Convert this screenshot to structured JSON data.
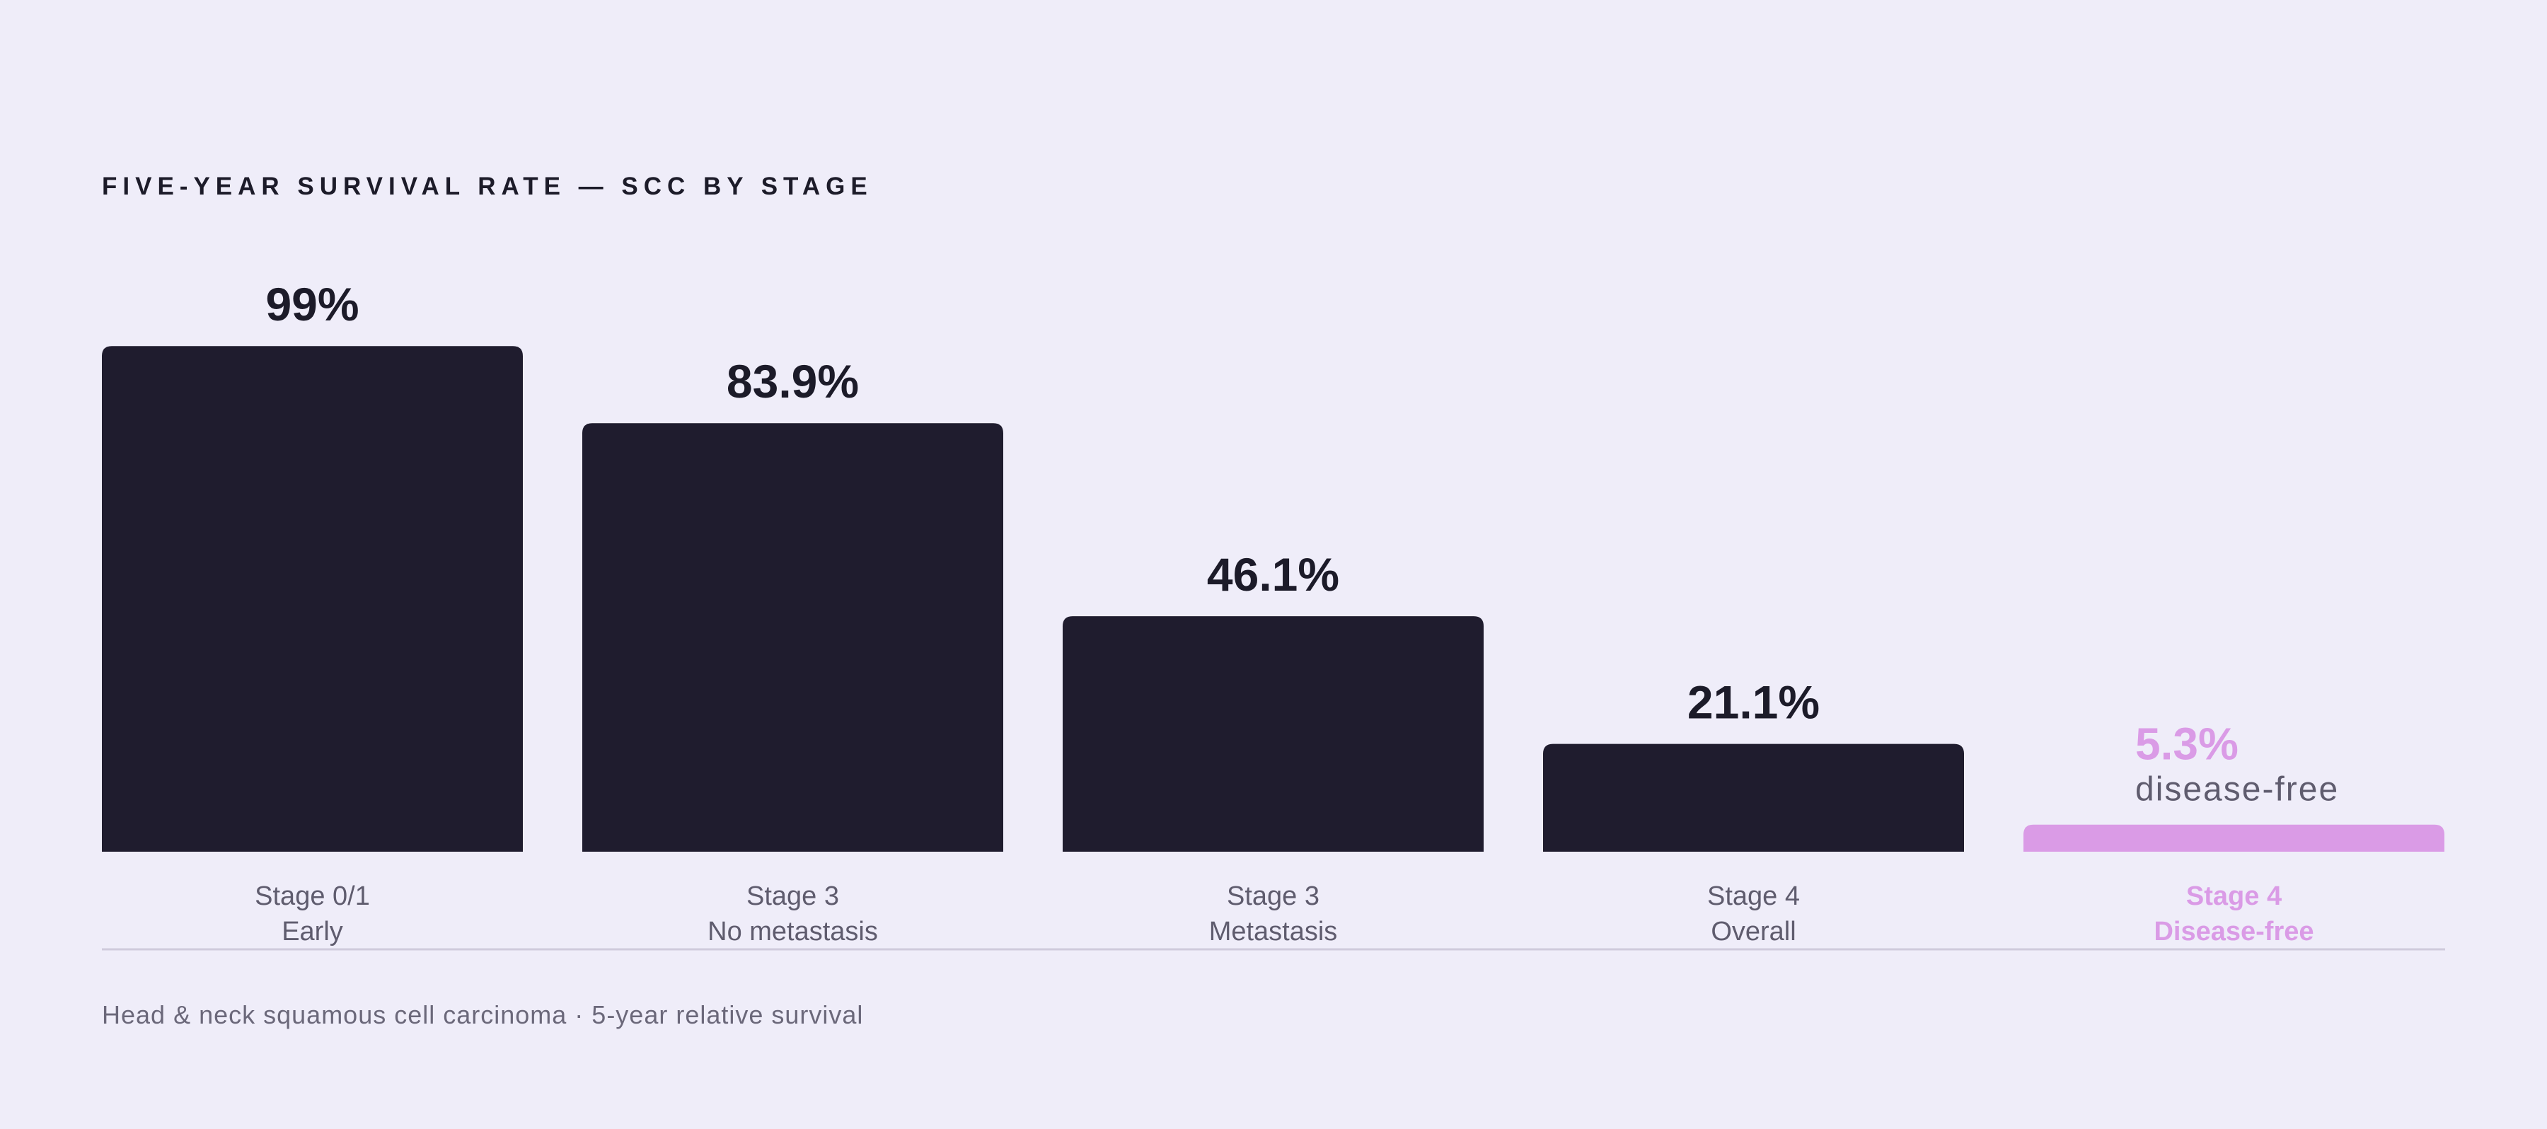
{
  "colors": {
    "background": "#efedf9",
    "bar": "#1f1c2e",
    "highlight": "#da9be6",
    "value_text": "#1c1b29",
    "category_text": "#5f5c6e",
    "baseline": "#cfcbdc"
  },
  "chart_data": {
    "type": "bar",
    "title": "FIVE-YEAR SURVIVAL RATE — SCC BY STAGE",
    "categories": [
      [
        "Stage 0/1",
        "Early"
      ],
      [
        "Stage 3",
        "No metastasis"
      ],
      [
        "Stage 3",
        "Metastasis"
      ],
      [
        "Stage 4",
        "Overall"
      ],
      [
        "Stage 4",
        "Disease-free"
      ]
    ],
    "values": [
      99,
      83.9,
      46.1,
      21.1,
      5.3
    ],
    "value_labels": [
      "99%",
      "83.9%",
      "46.1%",
      "21.1%",
      "5.3%"
    ],
    "highlight_index": 4,
    "highlight_note": "disease-free",
    "ylim": [
      0,
      100
    ],
    "grid": false,
    "legend": "none"
  },
  "footnote": "Head & neck squamous cell carcinoma · 5-year relative survival"
}
